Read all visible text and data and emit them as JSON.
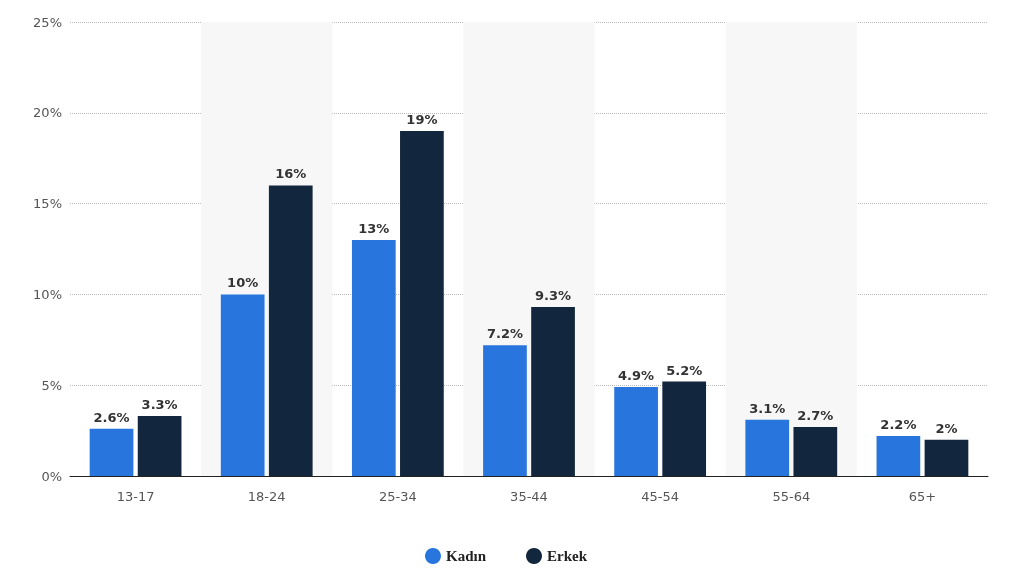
{
  "chart_data": {
    "type": "bar",
    "categories": [
      "13-17",
      "18-24",
      "25-34",
      "35-44",
      "45-54",
      "55-64",
      "65+"
    ],
    "series": [
      {
        "name": "Kadın",
        "color": "#2876dd",
        "values": [
          2.6,
          10,
          13,
          7.2,
          4.9,
          3.1,
          2.2
        ],
        "value_labels": [
          "2.6%",
          "10%",
          "13%",
          "7.2%",
          "4.9%",
          "3.1%",
          "2.2%"
        ]
      },
      {
        "name": "Erkek",
        "color": "#12263d",
        "values": [
          3.3,
          16,
          19,
          9.3,
          5.2,
          2.7,
          2
        ],
        "value_labels": [
          "3.3%",
          "16%",
          "19%",
          "9.3%",
          "5.2%",
          "2.7%",
          "2%"
        ]
      }
    ],
    "ylim": [
      0,
      25
    ],
    "yticks": [
      {
        "value": 0,
        "label": "0%"
      },
      {
        "value": 5,
        "label": "5%"
      },
      {
        "value": 10,
        "label": "10%"
      },
      {
        "value": 15,
        "label": "15%"
      },
      {
        "value": 20,
        "label": "20%"
      },
      {
        "value": 25,
        "label": "25%"
      }
    ],
    "bands": [
      {
        "axis": "x",
        "from": "18-24",
        "to": "18-24",
        "color": "#f7f7f7"
      },
      {
        "axis": "x",
        "from": "35-44",
        "to": "35-44",
        "color": "#f7f7f7"
      },
      {
        "axis": "x",
        "from": "55-64",
        "to": "55-64",
        "color": "#f7f7f7"
      }
    ],
    "grid": "y",
    "legend": "bottom"
  }
}
